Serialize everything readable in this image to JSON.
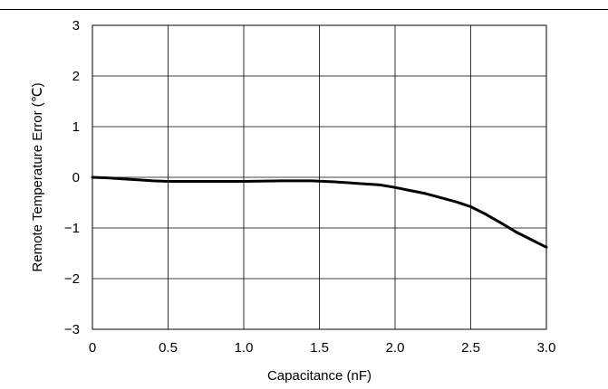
{
  "chart_data": {
    "type": "line",
    "title": "",
    "xlabel": "Capacitance (nF)",
    "ylabel": "Remote Temperature Error (℃)",
    "xlim": [
      0,
      3.0
    ],
    "ylim": [
      -3,
      3
    ],
    "grid": true,
    "x_ticks": [
      "0",
      "0.5",
      "1.0",
      "1.5",
      "2.0",
      "2.5",
      "3.0"
    ],
    "y_ticks": [
      "3",
      "2",
      "1",
      "0",
      "−1",
      "−2",
      "−3"
    ],
    "line_color": "#000000",
    "series": [
      {
        "x": [
          0,
          0.1,
          0.2,
          0.3,
          0.4,
          0.5,
          0.75,
          1.0,
          1.25,
          1.45,
          1.6,
          1.75,
          1.9,
          2.0,
          2.1,
          2.2,
          2.3,
          2.4,
          2.5,
          2.6,
          2.7,
          2.8,
          2.9,
          3.0
        ],
        "y": [
          0,
          -0.01,
          -0.03,
          -0.05,
          -0.07,
          -0.08,
          -0.08,
          -0.08,
          -0.07,
          -0.07,
          -0.09,
          -0.12,
          -0.15,
          -0.2,
          -0.26,
          -0.32,
          -0.4,
          -0.48,
          -0.58,
          -0.73,
          -0.9,
          -1.08,
          -1.23,
          -1.38
        ]
      }
    ]
  }
}
